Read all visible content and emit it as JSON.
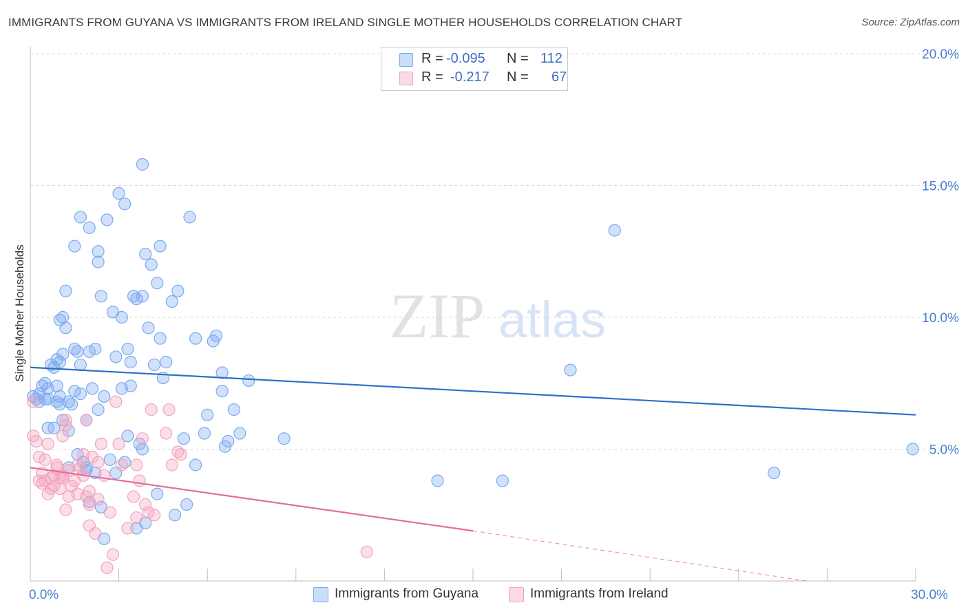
{
  "title": "IMMIGRANTS FROM GUYANA VS IMMIGRANTS FROM IRELAND SINGLE MOTHER HOUSEHOLDS CORRELATION CHART",
  "source": "Source: ZipAtlas.com",
  "watermark": {
    "zip": "ZIP",
    "atlas": "atlas"
  },
  "stats": [
    {
      "r_label": "R =",
      "r_value": "-0.095",
      "n_label": "N =",
      "n_value": "112",
      "color": "#7baaf0"
    },
    {
      "r_label": "R =",
      "r_value": "-0.217",
      "n_label": "N =",
      "n_value": "67",
      "color": "#f4a3bd"
    }
  ],
  "chart_data": {
    "type": "scatter",
    "title": "IMMIGRANTS FROM GUYANA VS IMMIGRANTS FROM IRELAND SINGLE MOTHER HOUSEHOLDS CORRELATION CHART",
    "xlabel": "",
    "ylabel": "Single Mother Households",
    "xlim": [
      0,
      30
    ],
    "ylim": [
      0,
      20
    ],
    "x_ticks": [
      {
        "value": 0,
        "label": "0.0%"
      },
      {
        "value": 30,
        "label": "30.0%"
      }
    ],
    "y_ticks": [
      {
        "value": 5,
        "label": "5.0%"
      },
      {
        "value": 10,
        "label": "10.0%"
      },
      {
        "value": 15,
        "label": "15.0%"
      },
      {
        "value": 20,
        "label": "20.0%"
      }
    ],
    "legend_position": "bottom",
    "series": [
      {
        "name": "Immigrants from Guyana",
        "color": "#7baaf0",
        "line_color": "#2f6ec9",
        "trend": {
          "x": [
            0,
            30
          ],
          "y": [
            8.1,
            6.3
          ]
        },
        "points": [
          [
            0.1,
            7.0
          ],
          [
            0.2,
            6.9
          ],
          [
            0.3,
            7.1
          ],
          [
            0.3,
            6.8
          ],
          [
            0.4,
            7.4
          ],
          [
            0.5,
            6.9
          ],
          [
            0.5,
            7.5
          ],
          [
            0.6,
            7.3
          ],
          [
            0.6,
            5.8
          ],
          [
            0.6,
            6.9
          ],
          [
            0.7,
            8.2
          ],
          [
            0.8,
            8.1
          ],
          [
            0.8,
            5.8
          ],
          [
            0.9,
            8.4
          ],
          [
            0.9,
            7.4
          ],
          [
            0.9,
            6.8
          ],
          [
            1.0,
            8.3
          ],
          [
            1.0,
            6.7
          ],
          [
            1.0,
            7.0
          ],
          [
            1.0,
            9.9
          ],
          [
            1.1,
            8.6
          ],
          [
            1.1,
            10.0
          ],
          [
            1.1,
            6.1
          ],
          [
            1.2,
            9.6
          ],
          [
            1.2,
            11.0
          ],
          [
            1.3,
            6.8
          ],
          [
            1.3,
            5.7
          ],
          [
            1.3,
            4.3
          ],
          [
            1.4,
            6.7
          ],
          [
            1.5,
            7.2
          ],
          [
            1.5,
            12.7
          ],
          [
            1.5,
            8.8
          ],
          [
            1.6,
            4.8
          ],
          [
            1.6,
            8.7
          ],
          [
            1.7,
            7.1
          ],
          [
            1.7,
            13.8
          ],
          [
            1.7,
            8.2
          ],
          [
            1.8,
            4.5
          ],
          [
            1.9,
            4.3
          ],
          [
            1.9,
            4.2
          ],
          [
            1.9,
            6.1
          ],
          [
            2.0,
            13.4
          ],
          [
            2.0,
            8.7
          ],
          [
            2.1,
            7.3
          ],
          [
            2.2,
            8.8
          ],
          [
            2.3,
            6.5
          ],
          [
            2.3,
            12.1
          ],
          [
            2.3,
            12.5
          ],
          [
            2.4,
            10.8
          ],
          [
            2.5,
            7.0
          ],
          [
            2.6,
            13.7
          ],
          [
            2.8,
            10.2
          ],
          [
            2.9,
            8.5
          ],
          [
            2.9,
            4.1
          ],
          [
            3.0,
            14.7
          ],
          [
            3.1,
            10.0
          ],
          [
            3.1,
            7.3
          ],
          [
            3.2,
            14.3
          ],
          [
            3.3,
            8.8
          ],
          [
            3.4,
            7.4
          ],
          [
            3.4,
            8.3
          ],
          [
            3.5,
            10.8
          ],
          [
            3.6,
            10.7
          ],
          [
            3.8,
            15.8
          ],
          [
            3.8,
            10.8
          ],
          [
            3.9,
            12.4
          ],
          [
            4.0,
            9.6
          ],
          [
            4.1,
            12.0
          ],
          [
            4.2,
            8.2
          ],
          [
            4.3,
            11.3
          ],
          [
            4.4,
            12.7
          ],
          [
            4.4,
            9.2
          ],
          [
            4.5,
            7.7
          ],
          [
            4.6,
            8.3
          ],
          [
            4.8,
            10.6
          ],
          [
            5.0,
            11.0
          ],
          [
            5.4,
            13.8
          ],
          [
            5.6,
            9.2
          ],
          [
            6.2,
            9.1
          ],
          [
            6.3,
            9.3
          ],
          [
            6.5,
            7.9
          ],
          [
            6.7,
            5.3
          ],
          [
            7.1,
            5.6
          ],
          [
            5.9,
            5.6
          ],
          [
            6.0,
            6.3
          ],
          [
            5.2,
            5.4
          ],
          [
            4.9,
            2.5
          ],
          [
            5.3,
            2.9
          ],
          [
            3.3,
            5.5
          ],
          [
            3.7,
            5.2
          ],
          [
            3.8,
            5.0
          ],
          [
            2.4,
            2.8
          ],
          [
            2.0,
            3.0
          ],
          [
            2.2,
            4.1
          ],
          [
            2.5,
            1.6
          ],
          [
            3.2,
            4.5
          ],
          [
            3.9,
            2.2
          ],
          [
            4.3,
            3.3
          ],
          [
            3.6,
            2.0
          ],
          [
            5.6,
            4.4
          ],
          [
            6.6,
            5.1
          ],
          [
            6.9,
            6.5
          ],
          [
            6.5,
            7.2
          ],
          [
            7.4,
            7.6
          ],
          [
            8.6,
            5.4
          ],
          [
            13.8,
            3.8
          ],
          [
            16.0,
            3.8
          ],
          [
            18.3,
            8.0
          ],
          [
            19.8,
            13.3
          ],
          [
            25.2,
            4.1
          ],
          [
            29.9,
            5.0
          ],
          [
            2.7,
            4.6
          ]
        ]
      },
      {
        "name": "Immigrants from Ireland",
        "color": "#f4a3bd",
        "line_color": "#e36e97",
        "trend": {
          "x": [
            0,
            15
          ],
          "y": [
            4.3,
            1.9
          ]
        },
        "trend_extension": {
          "x": [
            15,
            26.3
          ],
          "y": [
            1.9,
            0.0
          ]
        },
        "points": [
          [
            0.1,
            6.8
          ],
          [
            0.1,
            5.5
          ],
          [
            0.2,
            5.3
          ],
          [
            0.3,
            3.8
          ],
          [
            0.3,
            4.7
          ],
          [
            0.4,
            3.7
          ],
          [
            0.4,
            4.1
          ],
          [
            0.5,
            4.6
          ],
          [
            0.5,
            3.8
          ],
          [
            0.6,
            5.2
          ],
          [
            0.6,
            3.3
          ],
          [
            0.7,
            3.5
          ],
          [
            0.7,
            3.9
          ],
          [
            0.8,
            4.0
          ],
          [
            0.8,
            3.6
          ],
          [
            0.9,
            4.4
          ],
          [
            0.9,
            4.3
          ],
          [
            1.0,
            3.5
          ],
          [
            1.0,
            3.9
          ],
          [
            1.1,
            4.0
          ],
          [
            1.1,
            5.5
          ],
          [
            1.2,
            5.9
          ],
          [
            1.2,
            6.1
          ],
          [
            1.2,
            2.7
          ],
          [
            1.3,
            4.2
          ],
          [
            1.3,
            3.2
          ],
          [
            1.4,
            3.6
          ],
          [
            1.5,
            3.8
          ],
          [
            1.6,
            4.4
          ],
          [
            1.6,
            3.3
          ],
          [
            1.7,
            4.3
          ],
          [
            1.8,
            4.8
          ],
          [
            1.8,
            4.0
          ],
          [
            1.9,
            3.2
          ],
          [
            1.9,
            6.1
          ],
          [
            2.0,
            2.9
          ],
          [
            2.0,
            3.4
          ],
          [
            2.0,
            2.1
          ],
          [
            2.1,
            4.7
          ],
          [
            2.2,
            1.8
          ],
          [
            2.3,
            4.5
          ],
          [
            2.3,
            3.1
          ],
          [
            2.4,
            5.2
          ],
          [
            2.5,
            4.0
          ],
          [
            2.7,
            2.6
          ],
          [
            2.8,
            1.0
          ],
          [
            3.0,
            5.2
          ],
          [
            3.1,
            4.4
          ],
          [
            3.3,
            2.0
          ],
          [
            3.5,
            3.2
          ],
          [
            3.6,
            2.4
          ],
          [
            3.7,
            3.8
          ],
          [
            3.9,
            2.9
          ],
          [
            4.0,
            2.6
          ],
          [
            4.2,
            2.5
          ],
          [
            4.6,
            5.6
          ],
          [
            4.7,
            6.5
          ],
          [
            4.8,
            4.4
          ],
          [
            5.0,
            4.9
          ],
          [
            5.1,
            4.8
          ],
          [
            1.1,
            3.9
          ],
          [
            2.6,
            0.5
          ],
          [
            3.6,
            4.4
          ],
          [
            3.8,
            5.4
          ],
          [
            4.1,
            6.5
          ],
          [
            2.9,
            6.8
          ],
          [
            11.4,
            1.1
          ]
        ]
      }
    ]
  }
}
